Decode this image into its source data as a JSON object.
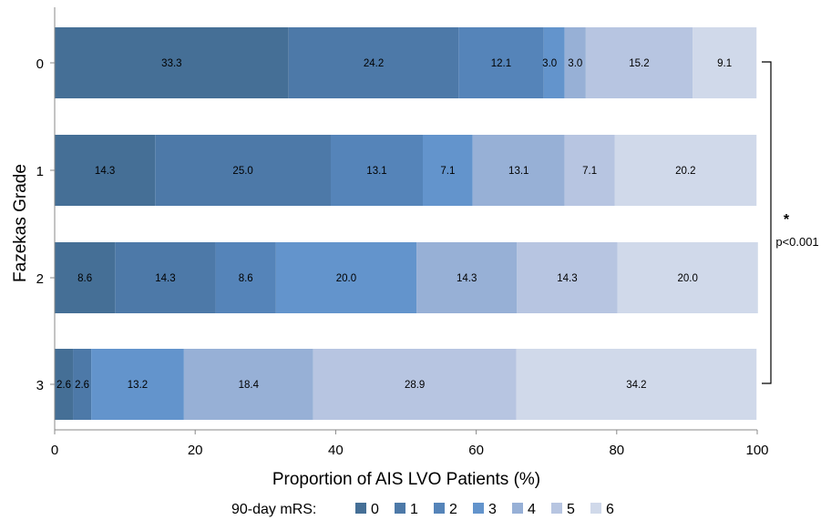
{
  "chart_data": {
    "type": "bar",
    "orientation": "horizontal",
    "stacked": true,
    "categories": [
      "0",
      "1",
      "2",
      "3"
    ],
    "series": [
      {
        "name": "0",
        "values": [
          33.3,
          14.3,
          8.6,
          2.6
        ],
        "labels": [
          "33.3",
          "14.3",
          "8.6",
          "2.6"
        ],
        "color": "#456f96"
      },
      {
        "name": "1",
        "values": [
          24.2,
          25.0,
          14.3,
          2.6
        ],
        "labels": [
          "24.2",
          "25.0",
          "14.3",
          "2.6"
        ],
        "color": "#4d79a8"
      },
      {
        "name": "2",
        "values": [
          12.1,
          13.1,
          8.6,
          0
        ],
        "labels": [
          "12.1",
          "13.1",
          "8.6",
          ""
        ],
        "color": "#5584b9"
      },
      {
        "name": "3",
        "values": [
          3.0,
          7.1,
          20.0,
          13.2
        ],
        "labels": [
          "",
          "7.1",
          "20.0",
          "13.2"
        ],
        "color": "#6394cc"
      },
      {
        "name": "4",
        "values": [
          3.0,
          13.1,
          14.3,
          18.4
        ],
        "labels": [
          "3.0",
          "13.1",
          "14.3",
          "18.4"
        ],
        "color": "#97b0d6"
      },
      {
        "name": "5",
        "values": [
          15.2,
          7.1,
          14.3,
          28.9
        ],
        "labels": [
          "15.2",
          "7.1",
          "14.3",
          "28.9"
        ],
        "color": "#b7c5e1"
      },
      {
        "name": "6",
        "values": [
          9.1,
          20.2,
          20.0,
          34.2
        ],
        "labels": [
          "9.1",
          "20.2",
          "20.0",
          "34.2"
        ],
        "color": "#d0d9ea"
      }
    ],
    "extra_labels": [
      {
        "category": "0",
        "text": "3.0"
      }
    ],
    "xlabel": "Proportion of AIS LVO Patients (%)",
    "ylabel": "Fazekas Grade",
    "xlim": [
      0,
      100
    ],
    "xticks": [
      "0",
      "20",
      "40",
      "60",
      "80",
      "100"
    ],
    "legend_title": "90-day mRS:",
    "legend_position": "bottom",
    "grid": false,
    "annotation": {
      "star": "*",
      "text": "p<0.001"
    }
  }
}
